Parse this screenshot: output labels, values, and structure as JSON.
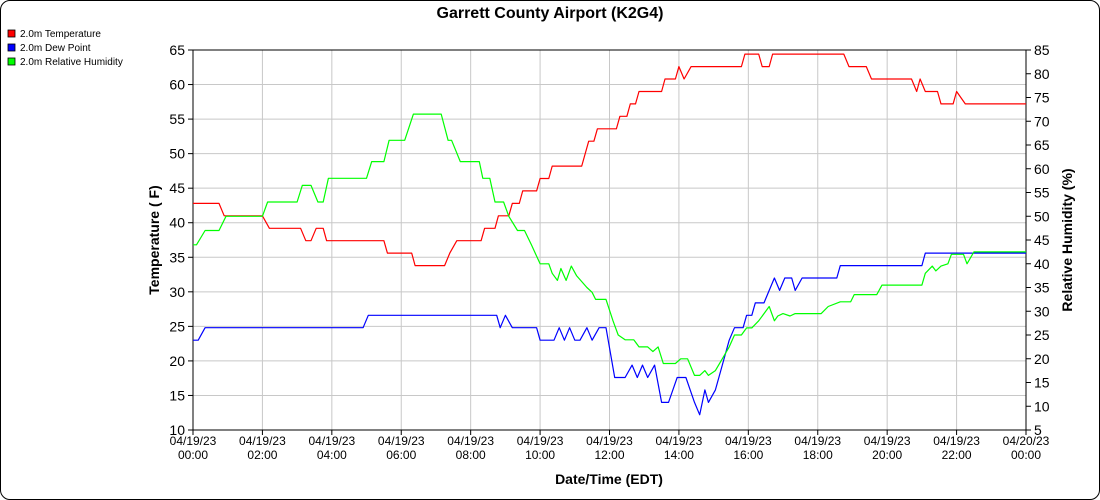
{
  "chart_data": {
    "type": "line",
    "title": "Garrett County Airport (K2G4)",
    "xlabel": "Date/Time (EDT)",
    "ylabel_left": "Temperature ( F)",
    "ylabel_right": "Relative Humidity (%)",
    "ylim_left": [
      10,
      65
    ],
    "ylim_right": [
      5,
      85
    ],
    "left_ticks": [
      10,
      15,
      20,
      25,
      30,
      35,
      40,
      45,
      50,
      55,
      60,
      65
    ],
    "right_ticks": [
      5,
      10,
      15,
      20,
      25,
      30,
      35,
      40,
      45,
      50,
      55,
      60,
      65,
      70,
      75,
      80,
      85
    ],
    "x_ticks": [
      {
        "hour": 0,
        "date": "04/19/23",
        "time": "00:00"
      },
      {
        "hour": 2,
        "date": "04/19/23",
        "time": "02:00"
      },
      {
        "hour": 4,
        "date": "04/19/23",
        "time": "04:00"
      },
      {
        "hour": 6,
        "date": "04/19/23",
        "time": "06:00"
      },
      {
        "hour": 8,
        "date": "04/19/23",
        "time": "08:00"
      },
      {
        "hour": 10,
        "date": "04/19/23",
        "time": "10:00"
      },
      {
        "hour": 12,
        "date": "04/19/23",
        "time": "12:00"
      },
      {
        "hour": 14,
        "date": "04/19/23",
        "time": "14:00"
      },
      {
        "hour": 16,
        "date": "04/19/23",
        "time": "16:00"
      },
      {
        "hour": 18,
        "date": "04/19/23",
        "time": "18:00"
      },
      {
        "hour": 20,
        "date": "04/19/23",
        "time": "20:00"
      },
      {
        "hour": 22,
        "date": "04/19/23",
        "time": "22:00"
      },
      {
        "hour": 24,
        "date": "04/20/23",
        "time": "00:00"
      }
    ],
    "grid": true,
    "legend_position": "top-left",
    "series": [
      {
        "name": "2.0m Temperature",
        "color": "#ff0000",
        "axis": "left",
        "points": [
          [
            0,
            42.8
          ],
          [
            0.75,
            42.8
          ],
          [
            0.9,
            41.0
          ],
          [
            2.0,
            41.0
          ],
          [
            2.2,
            39.2
          ],
          [
            3.1,
            39.2
          ],
          [
            3.25,
            37.4
          ],
          [
            3.4,
            37.4
          ],
          [
            3.55,
            39.2
          ],
          [
            3.75,
            39.2
          ],
          [
            3.85,
            37.4
          ],
          [
            5.5,
            37.4
          ],
          [
            5.6,
            35.6
          ],
          [
            6.3,
            35.6
          ],
          [
            6.4,
            33.8
          ],
          [
            7.25,
            33.8
          ],
          [
            7.4,
            35.6
          ],
          [
            7.6,
            37.4
          ],
          [
            8.3,
            37.4
          ],
          [
            8.4,
            39.2
          ],
          [
            8.7,
            39.2
          ],
          [
            8.8,
            41.0
          ],
          [
            9.1,
            41.0
          ],
          [
            9.2,
            42.8
          ],
          [
            9.4,
            42.8
          ],
          [
            9.5,
            44.6
          ],
          [
            9.9,
            44.6
          ],
          [
            10.0,
            46.4
          ],
          [
            10.25,
            46.4
          ],
          [
            10.35,
            48.2
          ],
          [
            11.2,
            48.2
          ],
          [
            11.4,
            51.8
          ],
          [
            11.55,
            51.8
          ],
          [
            11.65,
            53.6
          ],
          [
            12.2,
            53.6
          ],
          [
            12.3,
            55.4
          ],
          [
            12.5,
            55.4
          ],
          [
            12.6,
            57.2
          ],
          [
            12.75,
            57.2
          ],
          [
            12.85,
            59.0
          ],
          [
            13.5,
            59.0
          ],
          [
            13.6,
            60.8
          ],
          [
            13.9,
            60.8
          ],
          [
            14.0,
            62.6
          ],
          [
            14.15,
            60.8
          ],
          [
            14.35,
            62.6
          ],
          [
            15.8,
            62.6
          ],
          [
            15.9,
            64.4
          ],
          [
            16.3,
            64.4
          ],
          [
            16.4,
            62.6
          ],
          [
            16.6,
            62.6
          ],
          [
            16.7,
            64.4
          ],
          [
            18.75,
            64.4
          ],
          [
            18.9,
            62.6
          ],
          [
            19.4,
            62.6
          ],
          [
            19.55,
            60.8
          ],
          [
            20.7,
            60.8
          ],
          [
            20.85,
            59.0
          ],
          [
            20.95,
            60.8
          ],
          [
            21.1,
            59.0
          ],
          [
            21.45,
            59.0
          ],
          [
            21.55,
            57.2
          ],
          [
            21.9,
            57.2
          ],
          [
            22.0,
            59.0
          ],
          [
            22.25,
            57.2
          ],
          [
            24.0,
            57.2
          ]
        ]
      },
      {
        "name": "2.0m Dew Point",
        "color": "#0000ff",
        "axis": "left",
        "points": [
          [
            0,
            23.0
          ],
          [
            0.15,
            23.0
          ],
          [
            0.35,
            24.8
          ],
          [
            4.9,
            24.8
          ],
          [
            5.05,
            26.6
          ],
          [
            8.75,
            26.6
          ],
          [
            8.85,
            24.8
          ],
          [
            9.0,
            26.6
          ],
          [
            9.2,
            24.8
          ],
          [
            9.9,
            24.8
          ],
          [
            10.0,
            23.0
          ],
          [
            10.4,
            23.0
          ],
          [
            10.55,
            24.8
          ],
          [
            10.7,
            23.0
          ],
          [
            10.85,
            24.8
          ],
          [
            11.0,
            23.0
          ],
          [
            11.15,
            23.0
          ],
          [
            11.35,
            24.8
          ],
          [
            11.5,
            23.0
          ],
          [
            11.7,
            24.8
          ],
          [
            11.9,
            24.8
          ],
          [
            12.15,
            17.6
          ],
          [
            12.45,
            17.6
          ],
          [
            12.65,
            19.4
          ],
          [
            12.8,
            17.6
          ],
          [
            12.95,
            19.4
          ],
          [
            13.1,
            17.6
          ],
          [
            13.3,
            19.4
          ],
          [
            13.5,
            14.0
          ],
          [
            13.7,
            14.0
          ],
          [
            13.95,
            17.6
          ],
          [
            14.2,
            17.6
          ],
          [
            14.45,
            14.0
          ],
          [
            14.6,
            12.2
          ],
          [
            14.75,
            15.8
          ],
          [
            14.85,
            14.0
          ],
          [
            15.05,
            15.8
          ],
          [
            15.25,
            19.4
          ],
          [
            15.45,
            23.0
          ],
          [
            15.6,
            24.8
          ],
          [
            15.85,
            24.8
          ],
          [
            15.95,
            26.6
          ],
          [
            16.1,
            26.6
          ],
          [
            16.2,
            28.4
          ],
          [
            16.45,
            28.4
          ],
          [
            16.6,
            30.2
          ],
          [
            16.75,
            32.0
          ],
          [
            16.9,
            30.2
          ],
          [
            17.05,
            32.0
          ],
          [
            17.25,
            32.0
          ],
          [
            17.35,
            30.2
          ],
          [
            17.55,
            32.0
          ],
          [
            18.55,
            32.0
          ],
          [
            18.65,
            33.8
          ],
          [
            21.0,
            33.8
          ],
          [
            21.1,
            35.6
          ],
          [
            24.0,
            35.6
          ]
        ]
      },
      {
        "name": "2.0m Relative Humidity",
        "color": "#00ff00",
        "axis": "right",
        "points": [
          [
            0,
            44.0
          ],
          [
            0.1,
            44.0
          ],
          [
            0.35,
            47.0
          ],
          [
            0.75,
            47.0
          ],
          [
            0.95,
            50.0
          ],
          [
            2.0,
            50.0
          ],
          [
            2.15,
            53.0
          ],
          [
            3.0,
            53.0
          ],
          [
            3.15,
            56.5
          ],
          [
            3.4,
            56.5
          ],
          [
            3.6,
            53.0
          ],
          [
            3.75,
            53.0
          ],
          [
            3.9,
            58.0
          ],
          [
            5.0,
            58.0
          ],
          [
            5.15,
            61.5
          ],
          [
            5.5,
            61.5
          ],
          [
            5.65,
            66.0
          ],
          [
            6.1,
            66.0
          ],
          [
            6.35,
            71.5
          ],
          [
            7.15,
            71.5
          ],
          [
            7.35,
            66.0
          ],
          [
            7.45,
            66.0
          ],
          [
            7.7,
            61.5
          ],
          [
            8.25,
            61.5
          ],
          [
            8.35,
            58.0
          ],
          [
            8.55,
            58.0
          ],
          [
            8.7,
            53.0
          ],
          [
            8.95,
            53.0
          ],
          [
            9.1,
            50.0
          ],
          [
            9.35,
            47.0
          ],
          [
            9.55,
            47.0
          ],
          [
            9.75,
            44.0
          ],
          [
            10.0,
            40.0
          ],
          [
            10.25,
            40.0
          ],
          [
            10.35,
            38.0
          ],
          [
            10.5,
            36.5
          ],
          [
            10.6,
            39.0
          ],
          [
            10.75,
            36.5
          ],
          [
            10.9,
            39.5
          ],
          [
            11.05,
            37.5
          ],
          [
            11.35,
            35.0
          ],
          [
            11.5,
            34.0
          ],
          [
            11.6,
            32.5
          ],
          [
            11.9,
            32.5
          ],
          [
            12.1,
            28.0
          ],
          [
            12.25,
            25.0
          ],
          [
            12.45,
            24.0
          ],
          [
            12.7,
            24.0
          ],
          [
            12.85,
            22.5
          ],
          [
            13.1,
            22.5
          ],
          [
            13.25,
            21.5
          ],
          [
            13.4,
            22.5
          ],
          [
            13.55,
            19.0
          ],
          [
            13.9,
            19.0
          ],
          [
            14.05,
            20.0
          ],
          [
            14.25,
            20.0
          ],
          [
            14.45,
            16.5
          ],
          [
            14.6,
            16.5
          ],
          [
            14.75,
            17.5
          ],
          [
            14.85,
            16.5
          ],
          [
            15.05,
            17.5
          ],
          [
            15.25,
            20.0
          ],
          [
            15.45,
            22.5
          ],
          [
            15.6,
            25.0
          ],
          [
            15.8,
            25.0
          ],
          [
            15.95,
            26.5
          ],
          [
            16.1,
            26.5
          ],
          [
            16.3,
            28.0
          ],
          [
            16.45,
            29.5
          ],
          [
            16.6,
            31.0
          ],
          [
            16.75,
            28.0
          ],
          [
            16.85,
            29.0
          ],
          [
            17.0,
            29.5
          ],
          [
            17.2,
            29.0
          ],
          [
            17.35,
            29.5
          ],
          [
            18.1,
            29.5
          ],
          [
            18.3,
            31.0
          ],
          [
            18.65,
            32.0
          ],
          [
            18.95,
            32.0
          ],
          [
            19.05,
            33.5
          ],
          [
            19.7,
            33.5
          ],
          [
            19.85,
            35.5
          ],
          [
            21.0,
            35.5
          ],
          [
            21.1,
            38.0
          ],
          [
            21.3,
            39.5
          ],
          [
            21.4,
            38.5
          ],
          [
            21.55,
            39.5
          ],
          [
            21.75,
            40.0
          ],
          [
            21.85,
            42.0
          ],
          [
            22.2,
            42.0
          ],
          [
            22.3,
            40.0
          ],
          [
            22.5,
            42.5
          ],
          [
            24.0,
            42.5
          ]
        ]
      }
    ]
  }
}
